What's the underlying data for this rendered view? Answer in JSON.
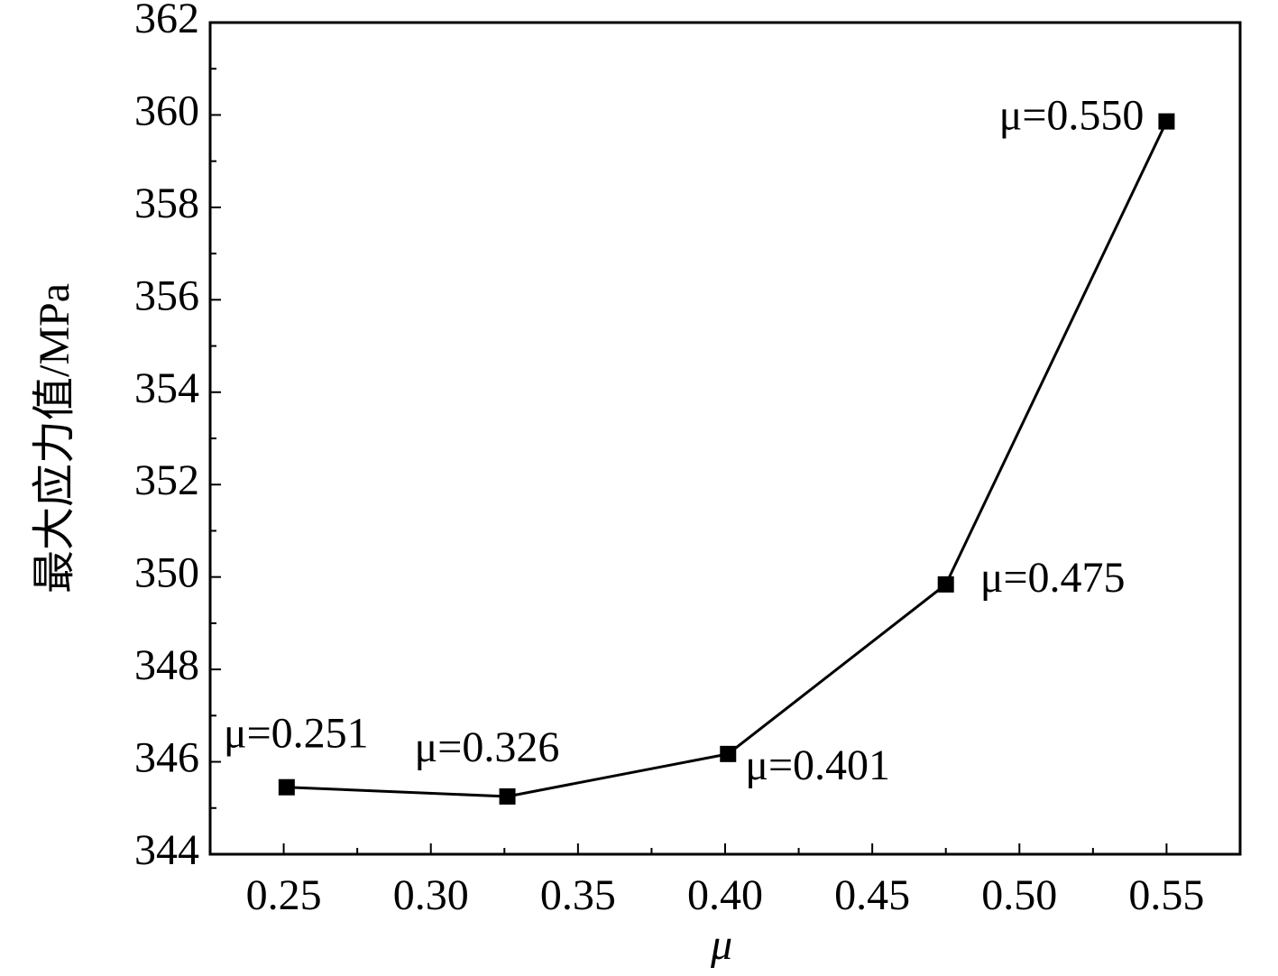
{
  "chart_data": {
    "type": "line",
    "x_label": "μ",
    "y_label": "最大应力值/MPa",
    "x": [
      0.251,
      0.326,
      0.401,
      0.475,
      0.55
    ],
    "series": [
      {
        "color": "#000000",
        "values": [
          345.45,
          345.25,
          346.17,
          349.84,
          359.86
        ]
      }
    ],
    "annotations": [
      "μ=0.251",
      "μ=0.326",
      "μ=0.401",
      "μ=0.475",
      "μ=0.550"
    ],
    "xlim": [
      0.225,
      0.575
    ],
    "ylim": [
      344,
      362
    ],
    "xticks": [
      {
        "value": 0.25,
        "label": "0.25"
      },
      {
        "value": 0.3,
        "label": "0.30"
      },
      0.35,
      {
        "value": 0.4,
        "label": "0.40"
      },
      0.45,
      {
        "value": 0.5,
        "label": "0.50"
      },
      0.55
    ],
    "yticks": [
      344,
      346,
      348,
      350,
      352,
      354,
      356,
      358,
      360,
      362
    ],
    "grid": false,
    "marker": "square"
  }
}
